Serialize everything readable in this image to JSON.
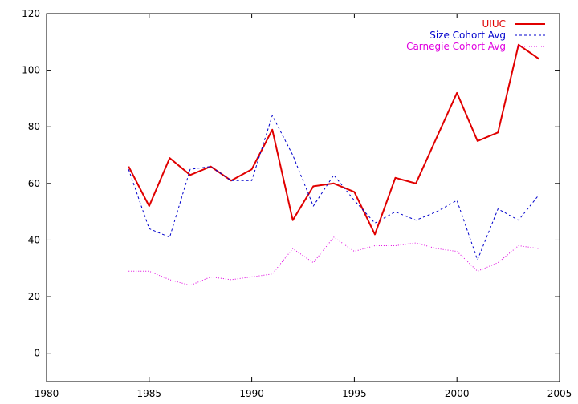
{
  "chart_data": {
    "type": "line",
    "xlim": [
      1980,
      2005
    ],
    "ylim": [
      -10,
      120
    ],
    "xticks": [
      1980,
      1985,
      1990,
      1995,
      2000,
      2005
    ],
    "yticks": [
      0,
      20,
      40,
      60,
      80,
      100,
      120
    ],
    "legend_position": "top-right",
    "series": [
      {
        "name": "UIUC",
        "color": "#e00000",
        "style": "solid",
        "x": [
          1984,
          1985,
          1986,
          1987,
          1988,
          1989,
          1990,
          1991,
          1992,
          1993,
          1994,
          1995,
          1996,
          1997,
          1998,
          1999,
          2000,
          2001,
          2002,
          2003,
          2004
        ],
        "y": [
          66,
          52,
          69,
          63,
          66,
          61,
          65,
          79,
          47,
          59,
          60,
          57,
          42,
          62,
          60,
          76,
          92,
          75,
          78,
          109,
          104
        ]
      },
      {
        "name": "Size Cohort Avg",
        "color": "#0000cc",
        "style": "dashed",
        "x": [
          1984,
          1985,
          1986,
          1987,
          1988,
          1989,
          1990,
          1991,
          1992,
          1993,
          1994,
          1995,
          1996,
          1997,
          1998,
          1999,
          2000,
          2001,
          2002,
          2003,
          2004
        ],
        "y": [
          65,
          44,
          41,
          65,
          66,
          61,
          61,
          84,
          70,
          52,
          63,
          54,
          46,
          50,
          47,
          50,
          54,
          33,
          51,
          47,
          56
        ]
      },
      {
        "name": "Carnegie Cohort Avg",
        "color": "#e000e0",
        "style": "dotted",
        "x": [
          1984,
          1985,
          1986,
          1987,
          1988,
          1989,
          1990,
          1991,
          1992,
          1993,
          1994,
          1995,
          1996,
          1997,
          1998,
          1999,
          2000,
          2001,
          2002,
          2003,
          2004
        ],
        "y": [
          29,
          29,
          26,
          24,
          27,
          26,
          27,
          28,
          37,
          32,
          41,
          36,
          38,
          38,
          39,
          37,
          36,
          29,
          32,
          38,
          37
        ]
      }
    ]
  }
}
